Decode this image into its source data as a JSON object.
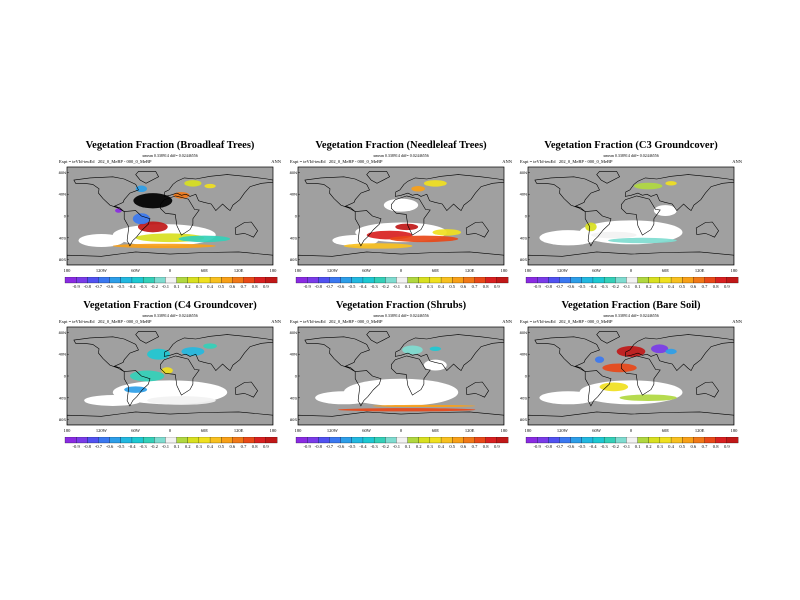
{
  "figure": "Vegetation fraction difference maps",
  "lon_ticks": [
    "180",
    "120W",
    "60W",
    "0",
    "60E",
    "120E",
    "180"
  ],
  "lat_ticks": [
    "80N",
    "40N",
    "0",
    "40S",
    "80S"
  ],
  "colorbar_levels": [
    "-0.9",
    "-0.8",
    "-0.7",
    "-0.6",
    "-0.5",
    "-0.4",
    "-0.3",
    "-0.2",
    "-0.1",
    "0.1",
    "0.2",
    "0.3",
    "0.4",
    "0.5",
    "0.6",
    "0.7",
    "0.8",
    "0.9"
  ],
  "colors": {
    "land": "#a0a0a0",
    "zero": "#ffffff",
    "near_zero": "#e6e6e6",
    "scale": [
      "#8a2be2",
      "#7a3be8",
      "#5151f0",
      "#3b78f0",
      "#2d9ee8",
      "#23b8e0",
      "#1ec8d2",
      "#33d0b8",
      "#7fdcd0",
      "#f2f2f2",
      "#b0d840",
      "#d8e020",
      "#f0e020",
      "#f8c020",
      "#f8a018",
      "#f07818",
      "#e84818",
      "#d82020",
      "#c01818"
    ]
  },
  "chart_data": [
    {
      "type": "heatmap",
      "title": "Vegetation Fraction (Broadleaf Trees)",
      "subtitle": "xmean 0.338914 diff= 0.02446556",
      "expt": "Expt = teVId-teuEd",
      "run": "202_0_MeBP - 000_0_MeBP",
      "period": "ANN",
      "xlabel_ticks": [
        "180",
        "120W",
        "60W",
        "0",
        "60E",
        "120E",
        "180"
      ],
      "colorbar": [
        "-0.9",
        "-0.8",
        "-0.7",
        "-0.6",
        "-0.5",
        "-0.4",
        "-0.3",
        "-0.2",
        "-0.1",
        "0.1",
        "0.2",
        "0.3",
        "0.4",
        "0.5",
        "0.6",
        "0.7",
        "0.8",
        "0.9"
      ]
    },
    {
      "type": "heatmap",
      "title": "Vegetation Fraction (Needleleaf Trees)",
      "subtitle": "xmean 0.338914 diff= 0.02446556",
      "expt": "Expt = teVId-teuEd",
      "run": "202_0_MeBP - 000_0_MeBP",
      "period": "ANN",
      "xlabel_ticks": [
        "180",
        "120W",
        "60W",
        "0",
        "60E",
        "120E",
        "180"
      ],
      "colorbar": [
        "-0.9",
        "-0.8",
        "-0.7",
        "-0.6",
        "-0.5",
        "-0.4",
        "-0.3",
        "-0.2",
        "-0.1",
        "0.1",
        "0.2",
        "0.3",
        "0.4",
        "0.5",
        "0.6",
        "0.7",
        "0.8",
        "0.9"
      ]
    },
    {
      "type": "heatmap",
      "title": "Vegetation Fraction (C3 Groundcover)",
      "subtitle": "xmean 0.338914 diff= 0.02446556",
      "expt": "Expt = teVId-teuEd",
      "run": "202_0_MeBP - 000_0_MeBP",
      "period": "ANN",
      "xlabel_ticks": [
        "180",
        "120W",
        "60W",
        "0",
        "60E",
        "120E",
        "180"
      ],
      "colorbar": [
        "-0.9",
        "-0.8",
        "-0.7",
        "-0.6",
        "-0.5",
        "-0.4",
        "-0.3",
        "-0.2",
        "-0.1",
        "0.1",
        "0.2",
        "0.3",
        "0.4",
        "0.5",
        "0.6",
        "0.7",
        "0.8",
        "0.9"
      ]
    },
    {
      "type": "heatmap",
      "title": "Vegetation Fraction (C4 Groundcover)",
      "subtitle": "xmean 0.338914 diff= 0.02446556",
      "expt": "Expt = teVId-teuEd",
      "run": "202_0_MeBP - 000_0_MeBP",
      "period": "ANN",
      "xlabel_ticks": [
        "180",
        "120W",
        "60W",
        "0",
        "60E",
        "120E",
        "180"
      ],
      "colorbar": [
        "-0.9",
        "-0.8",
        "-0.7",
        "-0.6",
        "-0.5",
        "-0.4",
        "-0.3",
        "-0.2",
        "-0.1",
        "0.1",
        "0.2",
        "0.3",
        "0.4",
        "0.5",
        "0.6",
        "0.7",
        "0.8",
        "0.9"
      ]
    },
    {
      "type": "heatmap",
      "title": "Vegetation Fraction (Shrubs)",
      "subtitle": "xmean 0.338914 diff= 0.02446556",
      "expt": "Expt = teVId-teuEd",
      "run": "202_0_MeBP - 000_0_MeBP",
      "period": "ANN",
      "xlabel_ticks": [
        "180",
        "120W",
        "60W",
        "0",
        "60E",
        "120E",
        "180"
      ],
      "colorbar": [
        "-0.9",
        "-0.8",
        "-0.7",
        "-0.6",
        "-0.5",
        "-0.4",
        "-0.3",
        "-0.2",
        "-0.1",
        "0.1",
        "0.2",
        "0.3",
        "0.4",
        "0.5",
        "0.6",
        "0.7",
        "0.8",
        "0.9"
      ]
    },
    {
      "type": "heatmap",
      "title": "Vegetation Fraction (Bare Soil)",
      "subtitle": "xmean 0.338914 diff= 0.02446556",
      "expt": "Expt = teVId-teuEd",
      "run": "202_0_MeBP - 000_0_MeBP",
      "period": "ANN",
      "xlabel_ticks": [
        "180",
        "120W",
        "60W",
        "0",
        "60E",
        "120E",
        "180"
      ],
      "colorbar": [
        "-0.9",
        "-0.8",
        "-0.7",
        "-0.6",
        "-0.5",
        "-0.4",
        "-0.3",
        "-0.2",
        "-0.1",
        "0.1",
        "0.2",
        "0.3",
        "0.4",
        "0.5",
        "0.6",
        "0.7",
        "0.8",
        "0.9"
      ]
    }
  ]
}
